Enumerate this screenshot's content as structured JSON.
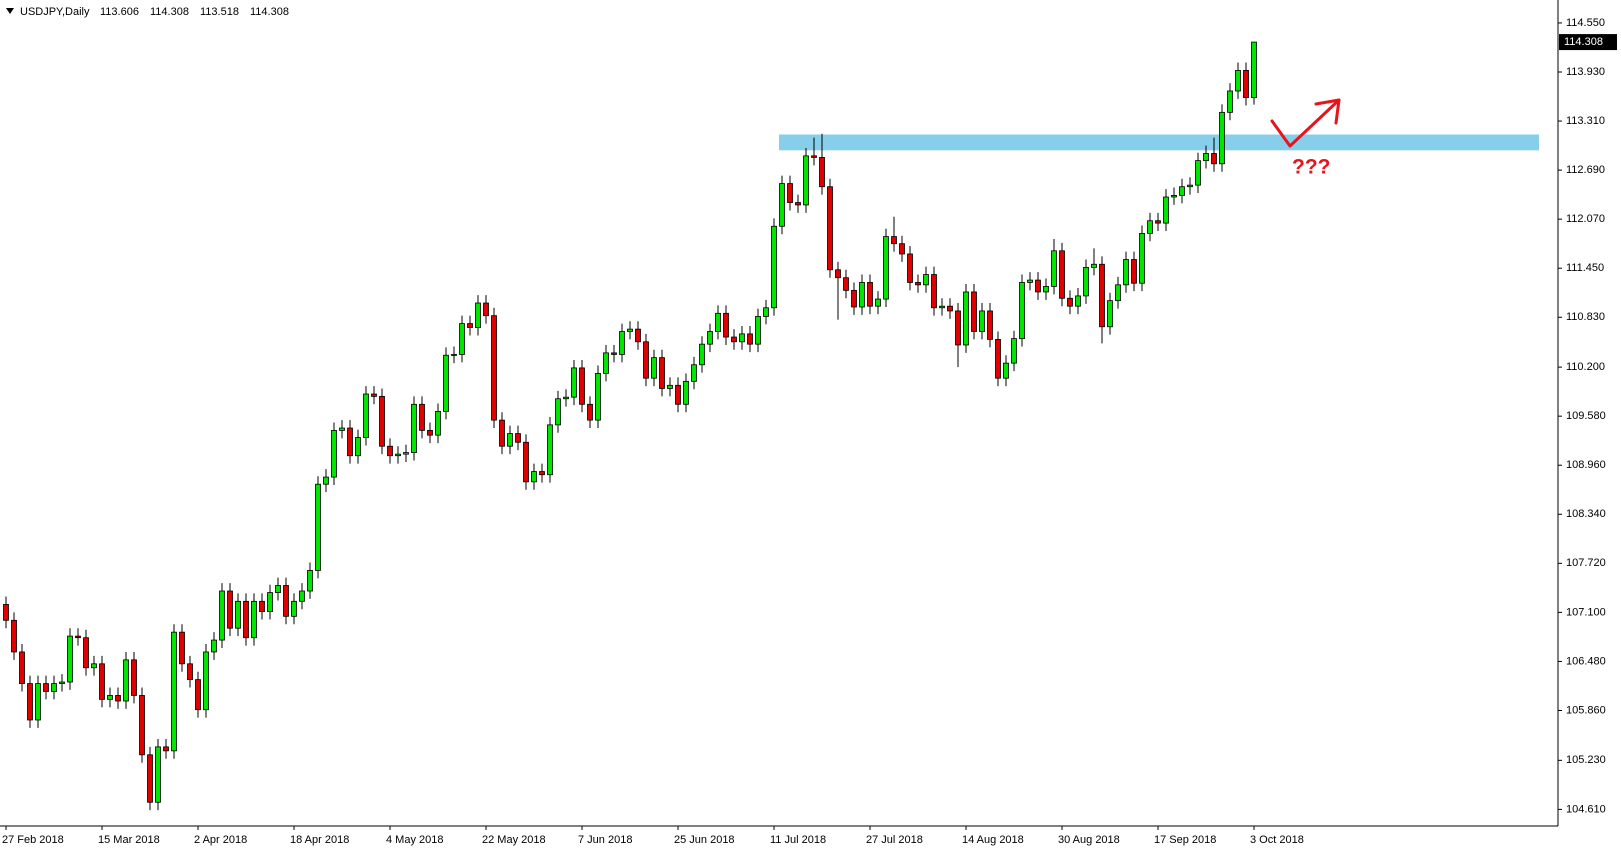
{
  "chart_data": {
    "type": "candlestick",
    "header": {
      "symbol": "USDJPY,Daily"
    },
    "up_color": "#00e600",
    "down_color": "#e00000",
    "categories": [
      "27 Feb 2018",
      null,
      null,
      null,
      null,
      null,
      null,
      null,
      null,
      null,
      null,
      null,
      "15 Mar 2018",
      null,
      null,
      null,
      null,
      null,
      null,
      null,
      null,
      null,
      null,
      null,
      "2 Apr 2018",
      null,
      null,
      null,
      null,
      null,
      null,
      null,
      null,
      null,
      null,
      null,
      "18 Apr 2018",
      null,
      null,
      null,
      null,
      null,
      null,
      null,
      null,
      null,
      null,
      null,
      "4 May 2018",
      null,
      null,
      null,
      null,
      null,
      null,
      null,
      null,
      null,
      null,
      null,
      "22 May 2018",
      null,
      null,
      null,
      null,
      null,
      null,
      null,
      null,
      null,
      null,
      null,
      "7 Jun 2018",
      null,
      null,
      null,
      null,
      null,
      null,
      null,
      null,
      null,
      null,
      null,
      "25 Jun 2018",
      null,
      null,
      null,
      null,
      null,
      null,
      null,
      null,
      null,
      null,
      null,
      "11 Jul 2018",
      null,
      null,
      null,
      null,
      null,
      null,
      null,
      null,
      null,
      null,
      null,
      "27 Jul 2018",
      null,
      null,
      null,
      null,
      null,
      null,
      null,
      null,
      null,
      null,
      null,
      "14 Aug 2018",
      null,
      null,
      null,
      null,
      null,
      null,
      null,
      null,
      null,
      null,
      null,
      "30 Aug 2018",
      null,
      null,
      null,
      null,
      null,
      null,
      null,
      null,
      null,
      null,
      null,
      "17 Sep 2018",
      null,
      null,
      null,
      null,
      null,
      null,
      null,
      null,
      null,
      null,
      null,
      "3 Oct 2018"
    ],
    "open": [
      107.2,
      107,
      106.6,
      106.2,
      105.74,
      106.2,
      106.1,
      106.2,
      106.22,
      106.8,
      106.78,
      106.4,
      106.45,
      106,
      106.05,
      105.98,
      106.5,
      106.05,
      105.3,
      104.7,
      105.4,
      105.35,
      106.85,
      106.45,
      106.25,
      105.87,
      106.6,
      106.75,
      107.37,
      106.9,
      107.24,
      106.78,
      107.24,
      107.11,
      107.35,
      107.44,
      107.05,
      107.24,
      107.37,
      107.63,
      108.72,
      108.81,
      109.4,
      109.43,
      109.08,
      109.31,
      109.86,
      109.83,
      109.2,
      109.08,
      109.1,
      109.12,
      109.73,
      109.4,
      109.34,
      109.64,
      110.35,
      110.36,
      110.75,
      110.7,
      111.01,
      110.85,
      109.53,
      109.2,
      109.36,
      109.25,
      108.75,
      108.88,
      108.84,
      109.47,
      109.8,
      109.82,
      110.19,
      109.73,
      109.53,
      110.12,
      110.38,
      110.36,
      110.65,
      110.68,
      110.52,
      110.06,
      110.32,
      109.93,
      109.97,
      109.73,
      110.02,
      110.23,
      110.49,
      110.65,
      110.88,
      110.58,
      110.52,
      110.62,
      110.49,
      110.84,
      110.95,
      111.98,
      112.52,
      112.28,
      112.25,
      112.87,
      112.85,
      112.48,
      111.43,
      111.33,
      111.17,
      110.96,
      111.27,
      110.97,
      111.06,
      111.85,
      111.76,
      111.63,
      111.27,
      111.24,
      111.37,
      110.95,
      110.97,
      110.91,
      110.48,
      111.15,
      110.65,
      110.91,
      110.55,
      110.06,
      110.25,
      110.56,
      111.27,
      111.3,
      111.15,
      111.22,
      111.67,
      111.07,
      110.97,
      111.1,
      111.46,
      111.5,
      110.71,
      111.04,
      111.24,
      111.56,
      111.26,
      111.89,
      112.05,
      112.02,
      112.35,
      112.37,
      112.48,
      112.5,
      112.81,
      112.9,
      112.77,
      113.42,
      113.69,
      113.95,
      113.606
    ],
    "high": [
      107.3,
      107.1,
      106.7,
      106.3,
      106.3,
      106.3,
      106.3,
      106.32,
      106.9,
      106.9,
      106.88,
      106.55,
      106.55,
      106.15,
      106.15,
      106.6,
      106.6,
      106.15,
      105.4,
      105.5,
      105.5,
      106.95,
      106.95,
      106.55,
      106.35,
      106.7,
      106.85,
      107.47,
      107.47,
      107.34,
      107.34,
      107.34,
      107.34,
      107.45,
      107.54,
      107.54,
      107.34,
      107.47,
      107.73,
      108.82,
      108.91,
      109.5,
      109.53,
      109.53,
      109.41,
      109.96,
      109.96,
      109.93,
      109.3,
      109.2,
      109.22,
      109.83,
      109.83,
      109.5,
      109.74,
      110.45,
      110.46,
      110.85,
      110.85,
      111.11,
      111.11,
      110.95,
      109.63,
      109.46,
      109.46,
      109.35,
      108.98,
      108.98,
      109.57,
      109.9,
      109.92,
      110.29,
      110.29,
      109.83,
      110.22,
      110.48,
      110.48,
      110.75,
      110.78,
      110.78,
      110.62,
      110.42,
      110.42,
      110.07,
      110.07,
      110.12,
      110.33,
      110.59,
      110.75,
      110.98,
      110.98,
      110.68,
      110.72,
      110.72,
      110.94,
      111.05,
      112.08,
      112.62,
      112.62,
      112.38,
      112.97,
      113.1,
      113.15,
      112.58,
      111.53,
      111.43,
      111.27,
      111.37,
      111.37,
      111.16,
      111.95,
      112.1,
      111.86,
      111.73,
      111.37,
      111.47,
      111.47,
      111.07,
      111.07,
      111.01,
      111.25,
      111.25,
      111.01,
      111.01,
      110.65,
      110.35,
      110.66,
      111.37,
      111.4,
      111.4,
      111.32,
      111.82,
      111.77,
      111.17,
      111.2,
      111.56,
      111.7,
      111.6,
      111.14,
      111.34,
      111.66,
      111.66,
      111.99,
      112.15,
      112.15,
      112.45,
      112.47,
      112.58,
      112.6,
      112.91,
      113,
      113.1,
      113.52,
      113.79,
      114.05,
      114.05,
      114.308
    ],
    "low": [
      106.9,
      106.5,
      106.1,
      105.64,
      105.64,
      106,
      106,
      106.1,
      106.12,
      106.68,
      106.3,
      106.3,
      105.9,
      105.9,
      105.88,
      105.88,
      105.95,
      105.2,
      104.6,
      104.6,
      105.25,
      105.25,
      106.35,
      106.15,
      105.77,
      105.77,
      106.5,
      106.65,
      106.8,
      106.8,
      106.68,
      106.68,
      107.01,
      107.01,
      107.25,
      106.95,
      106.95,
      107.14,
      107.27,
      107.53,
      108.62,
      108.71,
      109.3,
      108.98,
      108.98,
      109.21,
      109.73,
      109.1,
      108.98,
      108.98,
      109,
      109.02,
      109.3,
      109.24,
      109.24,
      109.54,
      110.25,
      110.26,
      110.6,
      110.6,
      110.75,
      109.43,
      109.1,
      109.1,
      109.15,
      108.65,
      108.65,
      108.74,
      108.74,
      109.37,
      109.7,
      109.72,
      109.63,
      109.43,
      109.43,
      110.02,
      110.26,
      110.26,
      110.55,
      110.42,
      109.96,
      109.96,
      109.83,
      109.83,
      109.63,
      109.63,
      109.92,
      110.13,
      110.39,
      110.55,
      110.48,
      110.42,
      110.42,
      110.39,
      110.39,
      110.74,
      110.85,
      111.88,
      112.18,
      112.15,
      112.15,
      112.75,
      112.38,
      111.33,
      110.8,
      111.07,
      110.86,
      110.86,
      110.87,
      110.87,
      110.96,
      111.66,
      111.53,
      111.17,
      111.14,
      111.14,
      110.85,
      110.85,
      110.81,
      110.2,
      110.38,
      110.55,
      110.55,
      110.45,
      109.96,
      109.96,
      110.15,
      110.46,
      111.17,
      111.05,
      111.05,
      111.12,
      110.97,
      110.87,
      110.87,
      111,
      111.36,
      110.5,
      110.61,
      110.94,
      111.14,
      111.16,
      111.16,
      111.79,
      111.92,
      111.92,
      112.25,
      112.27,
      112.38,
      112.4,
      112.71,
      112.67,
      112.67,
      113.32,
      113.59,
      113.506,
      113.518
    ],
    "close": [
      107,
      106.6,
      106.2,
      105.74,
      106.2,
      106.1,
      106.2,
      106.22,
      106.8,
      106.78,
      106.4,
      106.45,
      106,
      106.05,
      105.98,
      106.5,
      106.05,
      105.3,
      104.7,
      105.4,
      105.35,
      106.85,
      106.45,
      106.25,
      105.87,
      106.6,
      106.75,
      107.37,
      106.9,
      107.24,
      106.78,
      107.24,
      107.11,
      107.35,
      107.44,
      107.05,
      107.24,
      107.37,
      107.63,
      108.72,
      108.81,
      109.4,
      109.43,
      109.08,
      109.31,
      109.86,
      109.83,
      109.2,
      109.08,
      109.1,
      109.12,
      109.73,
      109.4,
      109.34,
      109.64,
      110.35,
      110.36,
      110.75,
      110.7,
      111.01,
      110.85,
      109.53,
      109.2,
      109.36,
      109.25,
      108.75,
      108.88,
      108.84,
      109.47,
      109.8,
      109.82,
      110.19,
      109.73,
      109.53,
      110.12,
      110.38,
      110.36,
      110.65,
      110.68,
      110.52,
      110.06,
      110.32,
      109.93,
      109.97,
      109.73,
      110.02,
      110.23,
      110.49,
      110.65,
      110.88,
      110.58,
      110.52,
      110.62,
      110.49,
      110.84,
      110.95,
      111.98,
      112.52,
      112.28,
      112.25,
      112.87,
      112.85,
      112.48,
      111.43,
      111.33,
      111.17,
      110.96,
      111.27,
      110.97,
      111.06,
      111.85,
      111.76,
      111.63,
      111.27,
      111.24,
      111.37,
      110.95,
      110.97,
      110.91,
      110.48,
      111.15,
      110.65,
      110.91,
      110.55,
      110.06,
      110.25,
      110.56,
      111.27,
      111.3,
      111.15,
      111.22,
      111.67,
      111.07,
      110.97,
      111.1,
      111.46,
      111.5,
      110.71,
      111.04,
      111.24,
      111.56,
      111.26,
      111.89,
      112.05,
      112.02,
      112.35,
      112.37,
      112.48,
      112.5,
      112.81,
      112.9,
      112.77,
      113.42,
      113.69,
      113.95,
      113.606,
      114.308
    ],
    "ylim": [
      104.4,
      114.84
    ],
    "yticks": [
      {
        "value": 114.55,
        "label": "114.550"
      },
      {
        "value": 113.93,
        "label": "113.930"
      },
      {
        "value": 113.31,
        "label": "113.310"
      },
      {
        "value": 112.69,
        "label": "112.690"
      },
      {
        "value": 112.07,
        "label": "112.070"
      },
      {
        "value": 111.45,
        "label": "111.450"
      },
      {
        "value": 110.83,
        "label": "110.830"
      },
      {
        "value": 110.2,
        "label": "110.200"
      },
      {
        "value": 109.58,
        "label": "109.580"
      },
      {
        "value": 108.96,
        "label": "108.960"
      },
      {
        "value": 108.34,
        "label": "108.340"
      },
      {
        "value": 107.72,
        "label": "107.720"
      },
      {
        "value": 107.1,
        "label": "107.100"
      },
      {
        "value": 106.48,
        "label": "106.480"
      },
      {
        "value": 105.86,
        "label": "105.860"
      },
      {
        "value": 105.23,
        "label": "105.230"
      },
      {
        "value": 104.61,
        "label": "104.610"
      }
    ],
    "zone": {
      "from": 112.94,
      "to": 113.14,
      "color": "#87ceeb"
    },
    "annotation": {
      "text": "???",
      "color": "#e8131b"
    },
    "grid": false
  }
}
